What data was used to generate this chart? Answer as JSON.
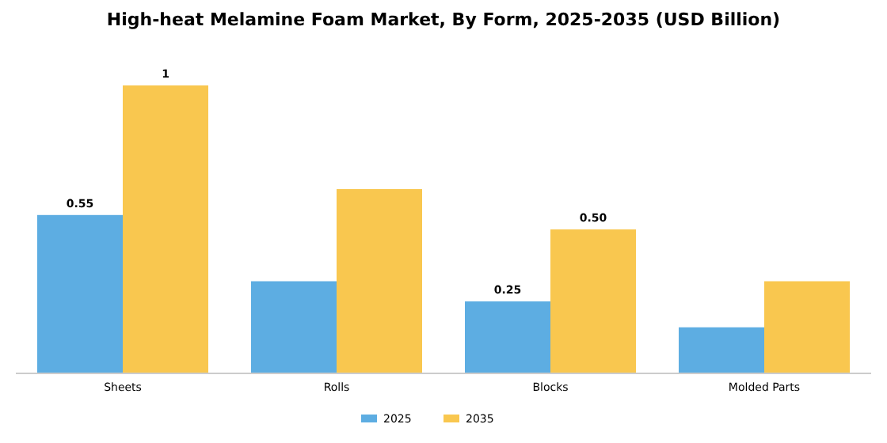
{
  "chart_data": {
    "type": "bar",
    "title": "High-heat Melamine Foam Market, By Form, 2025-2035 (USD Billion)",
    "categories": [
      "Sheets",
      "Rolls",
      "Blocks",
      "Molded Parts"
    ],
    "series": [
      {
        "name": "2025",
        "color": "#5dade2",
        "values": [
          0.55,
          0.32,
          0.25,
          0.16
        ],
        "value_labels": [
          "0.55",
          null,
          "0.25",
          null
        ]
      },
      {
        "name": "2035",
        "color": "#f9c74f",
        "values": [
          1,
          0.64,
          0.5,
          0.32
        ],
        "value_labels": [
          "1",
          null,
          "0.50",
          null
        ]
      }
    ],
    "tick_labels": "x",
    "legend": "bottom"
  }
}
